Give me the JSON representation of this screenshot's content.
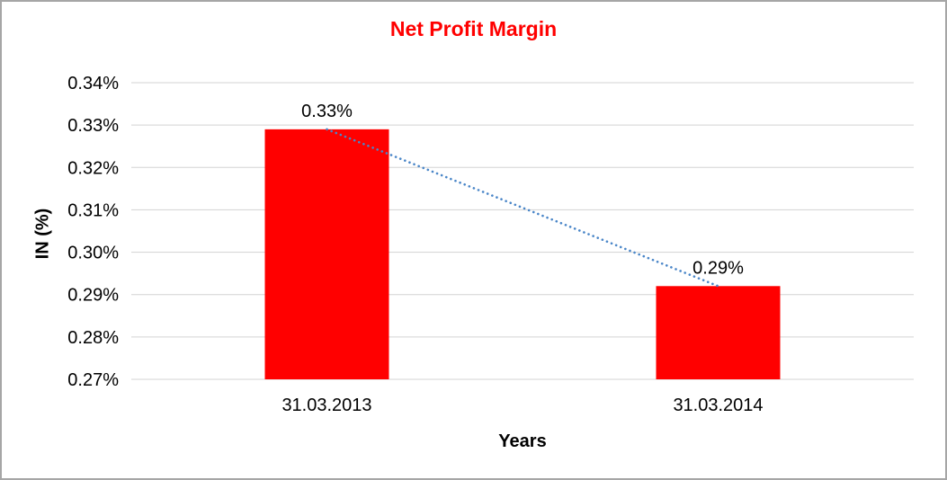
{
  "window": {
    "background": "#ffffff",
    "border_color": "#a6a6a6"
  },
  "chart_data": {
    "type": "bar",
    "title": "Net Profit Margin",
    "title_color": "#ff0000",
    "categories": [
      "31.03.2013",
      "31.03.2014"
    ],
    "series": [
      {
        "name": "Net Profit Margin",
        "values": [
          0.329,
          0.292
        ],
        "color": "#ff0000"
      }
    ],
    "data_labels": [
      "0.33%",
      "0.29%"
    ],
    "xlabel": "Years",
    "ylabel": "IN (%)",
    "y_axis": {
      "min": 0.27,
      "max": 0.34,
      "step": 0.01,
      "unit": "%",
      "tick_labels": [
        "0.34%",
        "0.33%",
        "0.32%",
        "0.31%",
        "0.30%",
        "0.29%",
        "0.28%",
        "0.27%"
      ]
    },
    "x_axis": {
      "tick_labels": [
        "31.03.2013",
        "31.03.2014"
      ]
    },
    "gridlines": {
      "show": true,
      "color": "#d3d3d3"
    },
    "trendline": {
      "type": "linear",
      "style": "dotted",
      "color": "#4a86c8",
      "from_value": 0.329,
      "to_value": 0.292
    },
    "legend": {
      "show": false
    },
    "text_color": "#000000"
  }
}
